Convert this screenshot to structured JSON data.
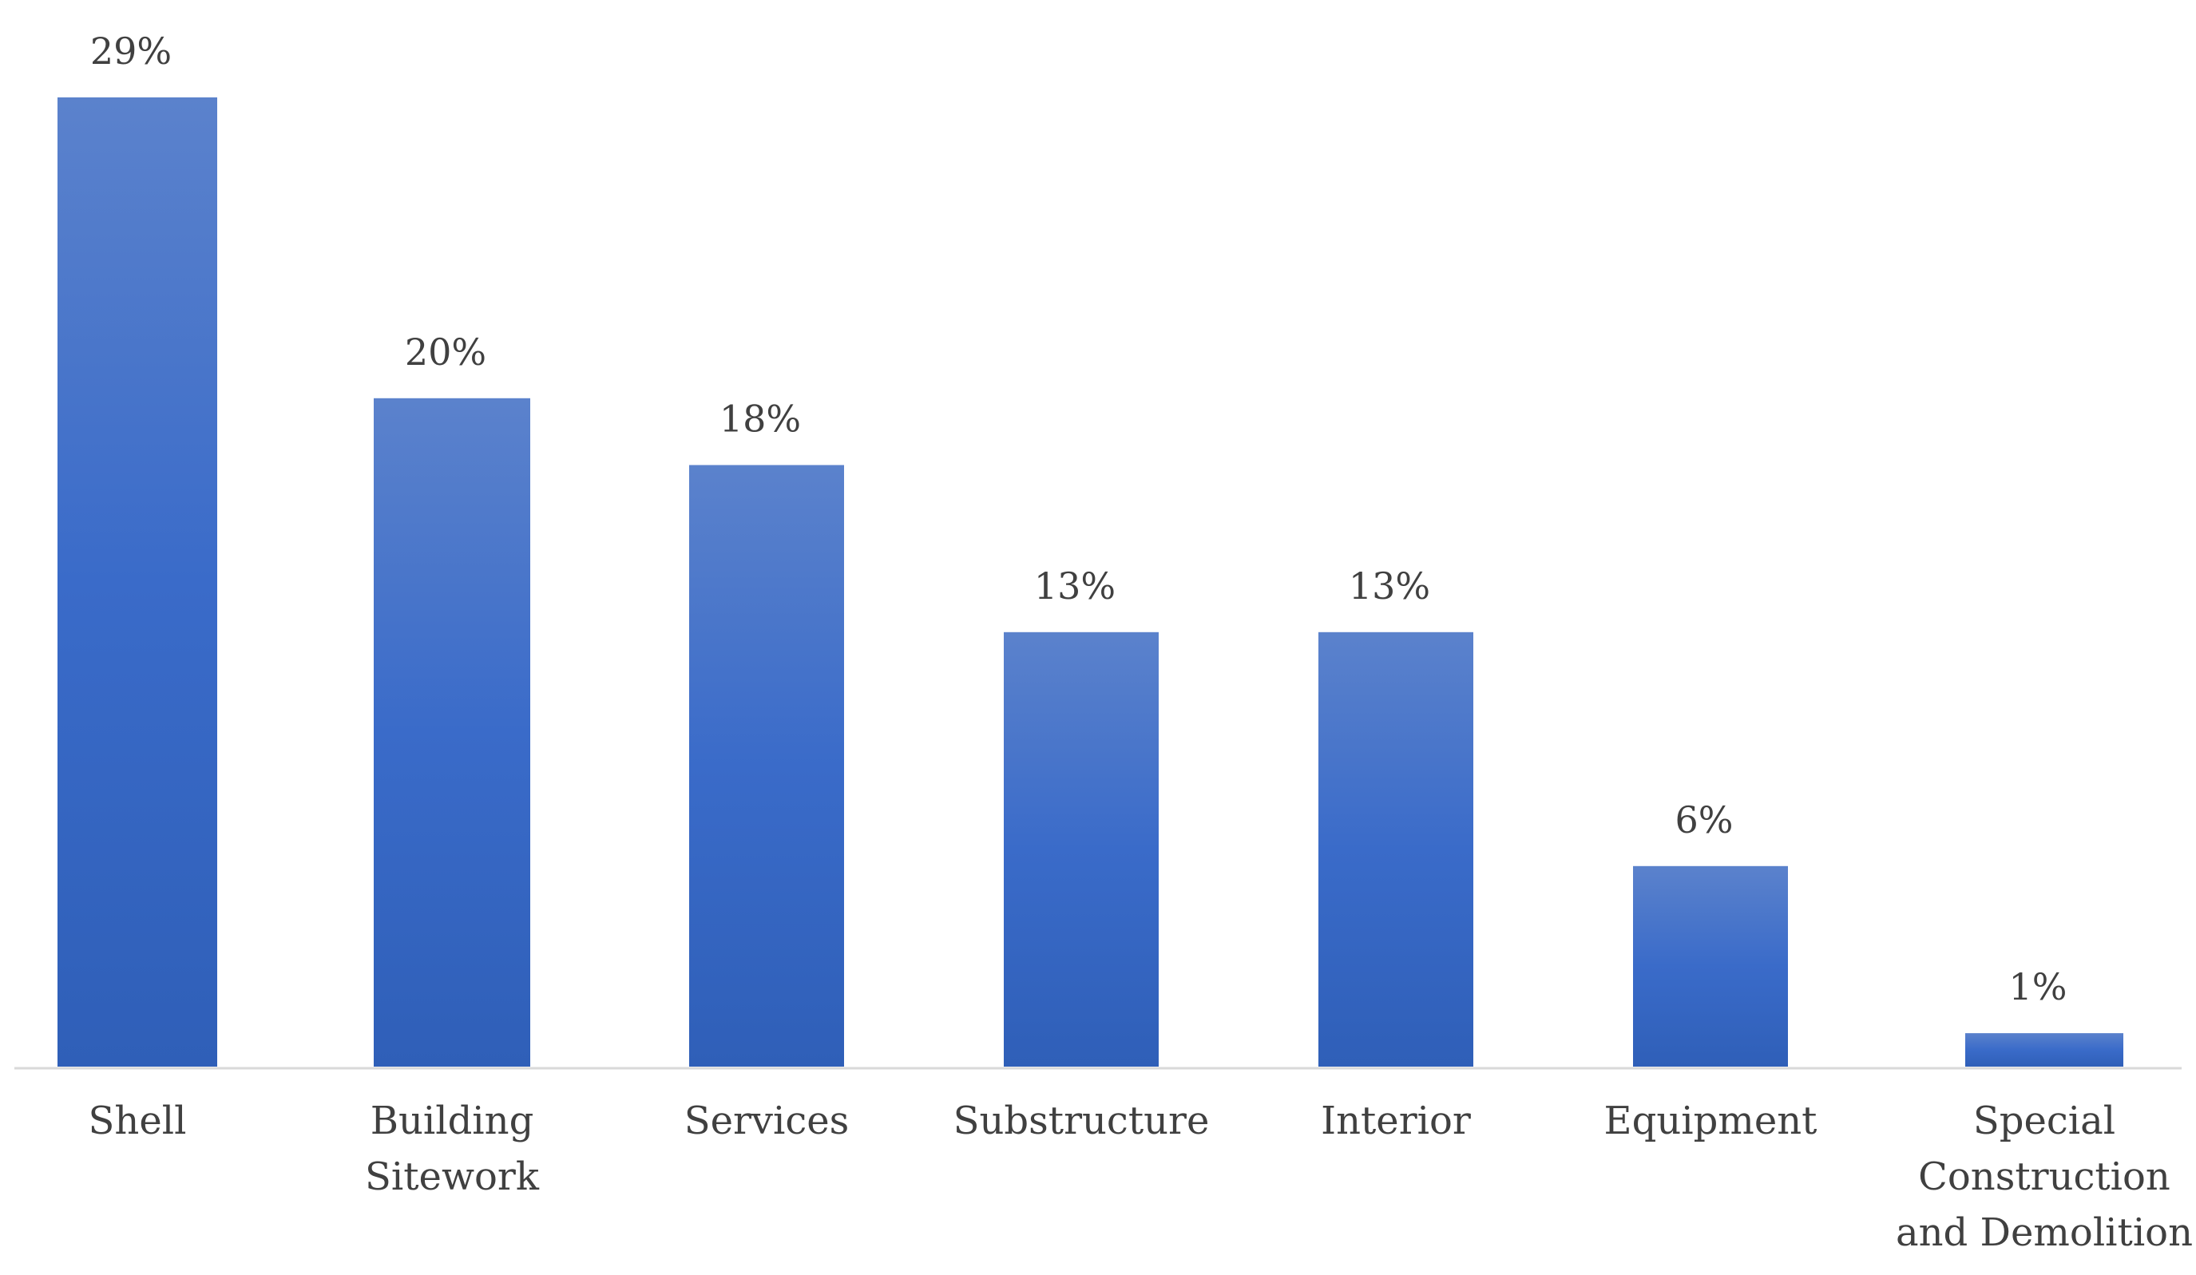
{
  "chart_data": {
    "type": "bar",
    "title": "",
    "xlabel": "",
    "ylabel": "",
    "categories": [
      "Shell",
      "Building Sitework",
      "Services",
      "Substructure",
      "Interior",
      "Equipment",
      "Special Construction and Demolition"
    ],
    "category_lines": [
      [
        "Shell"
      ],
      [
        "Building",
        "Sitework"
      ],
      [
        "Services"
      ],
      [
        "Substructure"
      ],
      [
        "Interior"
      ],
      [
        "Equipment"
      ],
      [
        "Special",
        "Construction",
        "and Demolition"
      ]
    ],
    "values": [
      29,
      20,
      18,
      13,
      13,
      6,
      1
    ],
    "data_labels": [
      "29%",
      "20%",
      "18%",
      "13%",
      "13%",
      "6%",
      "1%"
    ],
    "ylim": [
      0,
      29
    ],
    "grid": false,
    "legend": "none",
    "bar_color": "#3a6bc9",
    "bar_color_top": "#5b82cc",
    "axis_color": "#d9d9d9"
  }
}
